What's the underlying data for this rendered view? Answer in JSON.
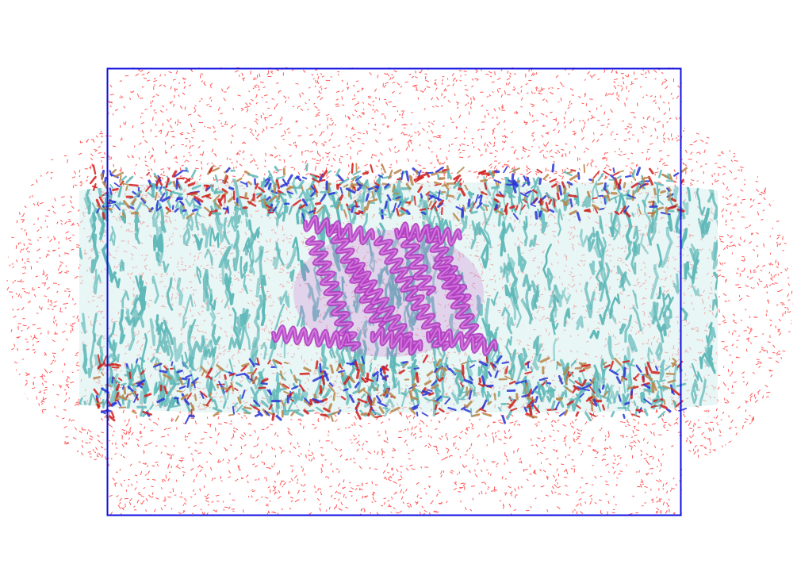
{
  "scene": {
    "description_kind": "molecular-dynamics-render",
    "components": [
      {
        "name": "water",
        "color": "#ff1e1e"
      },
      {
        "name": "lipid-tails",
        "color": "#5fb8b8"
      },
      {
        "name": "lipid-headgroup-oxygen",
        "color": "#d21e1e"
      },
      {
        "name": "lipid-headgroup-nitrogen",
        "color": "#2a35d6"
      },
      {
        "name": "lipid-headgroup-phosphorus",
        "color": "#b8864a"
      },
      {
        "name": "protein-helices",
        "color": "#b03cc0"
      }
    ],
    "box_outline_color": "#1010e0",
    "background_color": "#ffffff"
  }
}
